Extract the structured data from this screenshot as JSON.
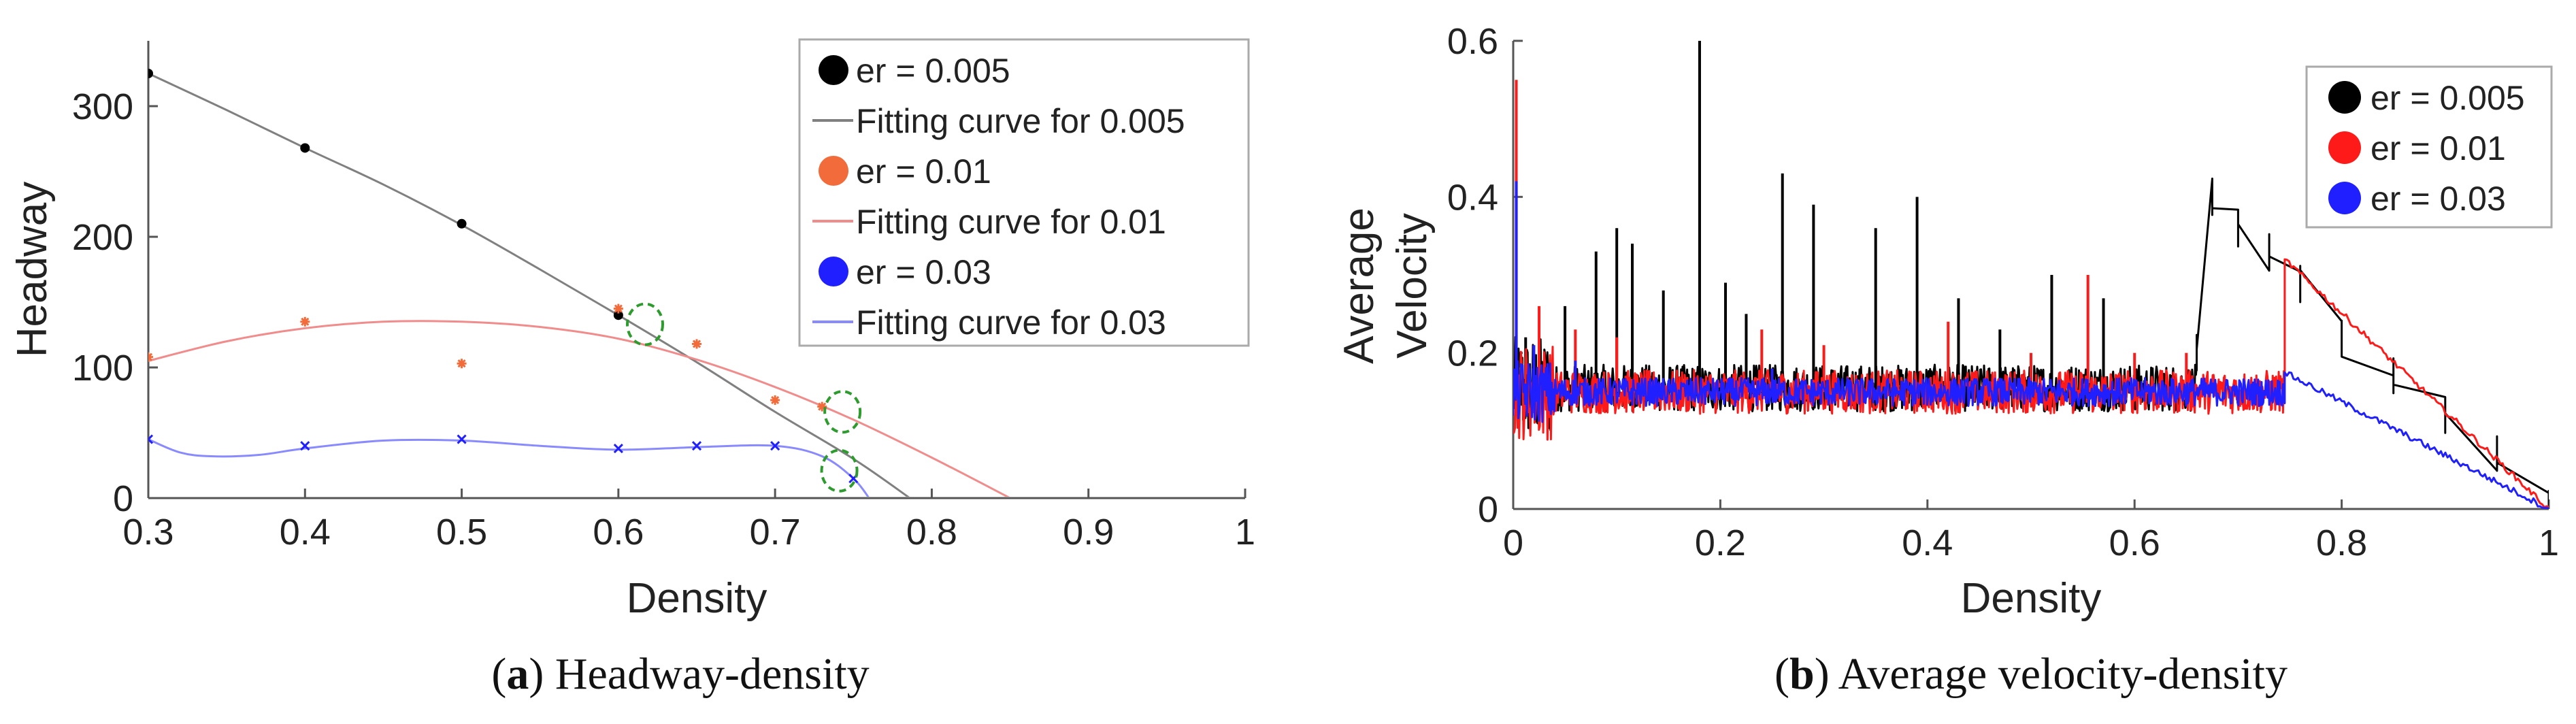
{
  "chart_data": [
    {
      "type": "scatter",
      "panel": "a",
      "caption_letter": "a",
      "caption_text": "Headway-density",
      "xlabel": "Density",
      "ylabel": "Headway",
      "xlim": [
        0.3,
        1
      ],
      "ylim": [
        0,
        350
      ],
      "xticks": [
        "0.3",
        "0.4",
        "0.5",
        "0.6",
        "0.7",
        "0.8",
        "0.9",
        "1"
      ],
      "yticks": [
        "0",
        "100",
        "200",
        "300"
      ],
      "legend_position": "top-right",
      "series": [
        {
          "name": "er = 0.005",
          "fit_name": "Fitting curve for 0.005",
          "color": "#000000",
          "fit_color": "#808080",
          "marker": "dot",
          "x": [
            0.3,
            0.4,
            0.5,
            0.6
          ],
          "y": [
            325,
            268,
            210,
            140
          ],
          "fit_x": [
            0.3,
            0.35,
            0.4,
            0.45,
            0.5,
            0.55,
            0.6,
            0.65,
            0.7,
            0.75,
            0.786
          ],
          "fit_y": [
            325,
            297,
            268,
            240,
            209,
            175,
            140,
            104,
            66,
            30,
            0
          ]
        },
        {
          "name": "er = 0.01",
          "fit_name": "Fitting curve for 0.01",
          "color": "#f26b3a",
          "fit_color": "#f08c8c",
          "marker": "star",
          "x": [
            0.3,
            0.4,
            0.5,
            0.6,
            0.65,
            0.7,
            0.73
          ],
          "y": [
            108,
            135,
            103,
            145,
            118,
            75,
            70
          ],
          "fit_x": [
            0.3,
            0.35,
            0.4,
            0.45,
            0.5,
            0.55,
            0.6,
            0.65,
            0.7,
            0.75,
            0.8,
            0.85
          ],
          "fit_y": [
            105,
            120,
            130,
            135,
            135,
            131,
            122,
            106,
            85,
            60,
            31,
            0
          ]
        },
        {
          "name": "er = 0.03",
          "fit_name": "Fitting curve for 0.03",
          "color": "#1f1fff",
          "fit_color": "#8a8aff",
          "marker": "cross",
          "x": [
            0.3,
            0.4,
            0.5,
            0.6,
            0.65,
            0.7,
            0.75
          ],
          "y": [
            45,
            40,
            45,
            38,
            40,
            40,
            15
          ],
          "fit_x": [
            0.3,
            0.32,
            0.34,
            0.37,
            0.4,
            0.45,
            0.5,
            0.55,
            0.6,
            0.65,
            0.7,
            0.73,
            0.75,
            0.76
          ],
          "fit_y": [
            45,
            35,
            32,
            33,
            38,
            44,
            44,
            40,
            37,
            39,
            40,
            32,
            15,
            0
          ]
        }
      ],
      "annotations": [
        {
          "type": "dashed-circle",
          "color": "#2e9b2e",
          "x": 0.617,
          "y": 133
        },
        {
          "type": "dashed-circle",
          "color": "#2e9b2e",
          "x": 0.743,
          "y": 66
        },
        {
          "type": "dashed-circle",
          "color": "#2e9b2e",
          "x": 0.741,
          "y": 21
        }
      ]
    },
    {
      "type": "line",
      "panel": "b",
      "caption_letter": "b",
      "caption_text": "Average velocity-density",
      "xlabel": "Density",
      "ylabel_lines": [
        "Average",
        "Velocity"
      ],
      "xlim": [
        0,
        1
      ],
      "ylim": [
        0,
        0.6
      ],
      "xticks": [
        "0",
        "0.2",
        "0.4",
        "0.6",
        "0.8",
        "1"
      ],
      "yticks": [
        "0",
        "0.2",
        "0.4",
        "0.6"
      ],
      "legend_position": "top-right",
      "series": [
        {
          "name": "er = 0.005",
          "color": "#000000",
          "base": 0.155,
          "transition_x": 0.66,
          "transition_peak": 0.4,
          "spikes": [
            {
              "x": 0.012,
              "y": 0.22
            },
            {
              "x": 0.05,
              "y": 0.26
            },
            {
              "x": 0.08,
              "y": 0.33
            },
            {
              "x": 0.1,
              "y": 0.36
            },
            {
              "x": 0.115,
              "y": 0.34
            },
            {
              "x": 0.145,
              "y": 0.28
            },
            {
              "x": 0.18,
              "y": 0.6
            },
            {
              "x": 0.205,
              "y": 0.29
            },
            {
              "x": 0.225,
              "y": 0.25
            },
            {
              "x": 0.26,
              "y": 0.43
            },
            {
              "x": 0.29,
              "y": 0.39
            },
            {
              "x": 0.35,
              "y": 0.36
            },
            {
              "x": 0.39,
              "y": 0.4
            },
            {
              "x": 0.43,
              "y": 0.27
            },
            {
              "x": 0.47,
              "y": 0.23
            },
            {
              "x": 0.52,
              "y": 0.3
            },
            {
              "x": 0.57,
              "y": 0.27
            }
          ]
        },
        {
          "name": "er = 0.01",
          "color": "#ff1a1a",
          "base": 0.15,
          "transition_x": 0.745,
          "transition_peak": 0.32,
          "spikes": [
            {
              "x": 0.003,
              "y": 0.55
            },
            {
              "x": 0.025,
              "y": 0.26
            },
            {
              "x": 0.06,
              "y": 0.23
            },
            {
              "x": 0.1,
              "y": 0.22
            },
            {
              "x": 0.24,
              "y": 0.23
            },
            {
              "x": 0.3,
              "y": 0.21
            },
            {
              "x": 0.42,
              "y": 0.24
            },
            {
              "x": 0.5,
              "y": 0.2
            },
            {
              "x": 0.555,
              "y": 0.3
            },
            {
              "x": 0.6,
              "y": 0.2
            },
            {
              "x": 0.65,
              "y": 0.2
            }
          ]
        },
        {
          "name": "er = 0.03",
          "color": "#1f1fff",
          "base": 0.15,
          "transition_x": 0.745,
          "transition_peak": 0.175,
          "spikes": [
            {
              "x": 0.003,
              "y": 0.42
            },
            {
              "x": 0.02,
              "y": 0.21
            },
            {
              "x": 0.06,
              "y": 0.19
            },
            {
              "x": 0.25,
              "y": 0.18
            }
          ]
        }
      ]
    }
  ]
}
